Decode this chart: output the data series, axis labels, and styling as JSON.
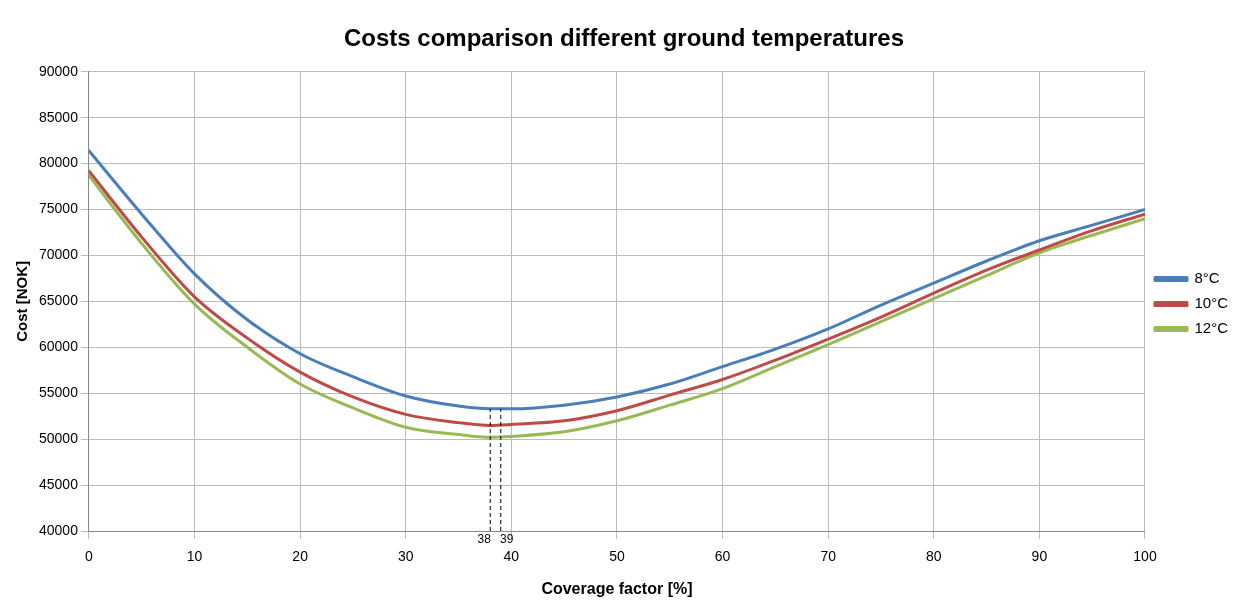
{
  "chart_data": {
    "type": "line",
    "title": "Costs comparison different ground temperatures",
    "xlabel": "Coverage factor [%]",
    "ylabel": "Cost [NOK]",
    "x": [
      0,
      5,
      10,
      15,
      20,
      25,
      30,
      35,
      38,
      40,
      45,
      50,
      55,
      60,
      65,
      70,
      75,
      80,
      85,
      90,
      95,
      100
    ],
    "series": [
      {
        "name": "8°C",
        "color": "#4a7ebb",
        "values": [
          81400,
          74500,
          68000,
          63000,
          59300,
          56800,
          54700,
          53600,
          53300,
          53300,
          53700,
          54600,
          56000,
          57900,
          59800,
          62000,
          64600,
          67000,
          69400,
          71600,
          73300,
          75000
        ]
      },
      {
        "name": "10°C",
        "color": "#be4b48",
        "values": [
          79200,
          72000,
          65500,
          61000,
          57300,
          54600,
          52700,
          51800,
          51500,
          51600,
          52000,
          53100,
          54800,
          56500,
          58600,
          60900,
          63300,
          65900,
          68400,
          70600,
          72700,
          74500
        ]
      },
      {
        "name": "12°C",
        "color": "#98b954",
        "values": [
          78700,
          71300,
          64700,
          60000,
          56000,
          53400,
          51300,
          50500,
          50200,
          50300,
          50800,
          52000,
          53700,
          55500,
          57900,
          60300,
          62800,
          65300,
          67800,
          70300,
          72200,
          74000
        ]
      }
    ],
    "xlim": [
      0,
      100
    ],
    "xticks": [
      0,
      10,
      20,
      30,
      40,
      50,
      60,
      70,
      80,
      90,
      100
    ],
    "ylim": [
      40000,
      90000
    ],
    "yticks": [
      40000,
      45000,
      50000,
      55000,
      60000,
      65000,
      70000,
      75000,
      80000,
      85000,
      90000
    ],
    "ref_lines": [
      {
        "axis": "x",
        "value": 38,
        "label": "38",
        "line_style": "dashed"
      },
      {
        "axis": "x",
        "value": 39,
        "label": "39",
        "line_style": "dashed"
      }
    ],
    "grid": true,
    "legend": "right",
    "marker": "none",
    "line_style": "solid"
  }
}
